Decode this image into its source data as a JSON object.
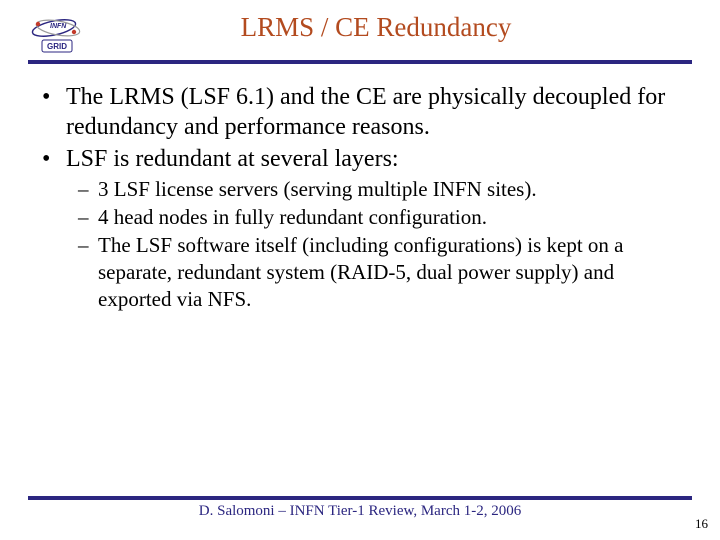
{
  "colors": {
    "title": "#b34b1f",
    "rule": "#2b2680",
    "footer": "#2b2680",
    "text": "#000000",
    "pagenum": "#000000",
    "logo_blue": "#2b2680",
    "logo_red": "#c43a2a",
    "logo_gray": "#9a9a9a"
  },
  "logo": {
    "top_label": "INFN",
    "bottom_label": "GRID"
  },
  "title": "LRMS / CE Redundancy",
  "bullets": [
    {
      "level": 1,
      "marker": "•",
      "text": "The LRMS (LSF 6.1) and the CE are physically decoupled for redundancy and performance reasons."
    },
    {
      "level": 1,
      "marker": "•",
      "text": "LSF is redundant at several layers:"
    },
    {
      "level": 2,
      "marker": "–",
      "text": "3 LSF license servers (serving multiple INFN sites)."
    },
    {
      "level": 2,
      "marker": "–",
      "text": "4 head nodes in fully redundant configuration."
    },
    {
      "level": 2,
      "marker": "–",
      "text": "The LSF software itself (including configurations) is kept on a separate, redundant system (RAID-5, dual power supply) and exported via NFS."
    }
  ],
  "footer": "D. Salomoni – INFN Tier-1 Review, March 1-2, 2006",
  "page_number": "16"
}
